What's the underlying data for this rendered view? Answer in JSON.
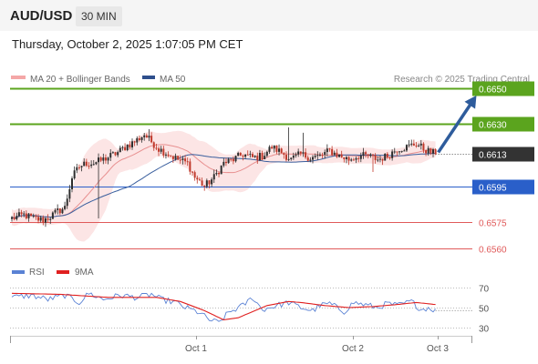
{
  "header": {
    "pair": "AUD/USD",
    "timeframe": "30 MIN",
    "timestamp": "Thursday, October 2, 2025 1:07:05 PM CET"
  },
  "legend": {
    "ma20": "MA 20 + Bollinger Bands",
    "ma50": "MA 50",
    "research": "Research © 2025 Trading Central",
    "rsi": "RSI",
    "ma9": "9MA"
  },
  "colors": {
    "resistance": "#5ba41e",
    "current": "#333333",
    "pivot": "#2a5fc9",
    "support": "#e05a5a",
    "ma20": "#e89090",
    "band_fill": "#fbdcdc",
    "ma50": "#3a5f9e",
    "candle_up": "#2d2d2d",
    "candle_down": "#c0392b",
    "arrow": "#2e5c9c",
    "rsi": "#5a82d4",
    "rsi_ma": "#e02020"
  },
  "chart_data": [
    {
      "type": "candlestick",
      "y_range": [
        0.65515,
        0.66535
      ],
      "x_labels": [
        "Oct 1",
        "Oct 2",
        "Oct 3"
      ],
      "levels": [
        {
          "label": "0.6650",
          "value": 0.665,
          "kind": "resistance"
        },
        {
          "label": "0.6630",
          "value": 0.663,
          "kind": "resistance"
        },
        {
          "label": "0.6613",
          "value": 0.6613,
          "kind": "current"
        },
        {
          "label": "0.6595",
          "value": 0.6595,
          "kind": "pivot"
        },
        {
          "label": "0.6575",
          "value": 0.6575,
          "kind": "support"
        },
        {
          "label": "0.6560",
          "value": 0.656,
          "kind": "support"
        }
      ],
      "anchors": [
        [
          0,
          0.6577
        ],
        [
          5,
          0.6579
        ],
        [
          9,
          0.6577
        ],
        [
          13,
          0.6576
        ],
        [
          16,
          0.6578
        ],
        [
          19,
          0.6581
        ],
        [
          22,
          0.6583
        ],
        [
          25,
          0.66
        ],
        [
          28,
          0.6606
        ],
        [
          31,
          0.6608
        ],
        [
          34,
          0.6608
        ],
        [
          38,
          0.661
        ],
        [
          41,
          0.6612
        ],
        [
          44,
          0.6614
        ],
        [
          48,
          0.6618
        ],
        [
          51,
          0.662
        ],
        [
          55,
          0.6624
        ],
        [
          58,
          0.662
        ],
        [
          61,
          0.6616
        ],
        [
          65,
          0.6613
        ],
        [
          69,
          0.661
        ],
        [
          73,
          0.6608
        ],
        [
          76,
          0.66
        ],
        [
          80,
          0.6595
        ],
        [
          84,
          0.66
        ],
        [
          88,
          0.6608
        ],
        [
          92,
          0.661
        ],
        [
          96,
          0.6613
        ],
        [
          100,
          0.6611
        ],
        [
          104,
          0.6612
        ],
        [
          108,
          0.6617
        ],
        [
          112,
          0.6614
        ],
        [
          116,
          0.661
        ],
        [
          120,
          0.6613
        ],
        [
          124,
          0.6611
        ],
        [
          128,
          0.6612
        ],
        [
          132,
          0.6615
        ],
        [
          136,
          0.6612
        ],
        [
          140,
          0.661
        ],
        [
          144,
          0.6612
        ],
        [
          148,
          0.6612
        ],
        [
          152,
          0.661
        ],
        [
          156,
          0.6612
        ],
        [
          160,
          0.6616
        ],
        [
          164,
          0.6617
        ],
        [
          168,
          0.6619
        ],
        [
          171,
          0.6616
        ],
        [
          174,
          0.6614
        ],
        [
          176,
          0.6613
        ]
      ],
      "arrow_from": {
        "bar": 176,
        "value": 0.6613
      },
      "arrow_to": {
        "bar": 193,
        "value": 0.665
      }
    },
    {
      "type": "line",
      "series": [
        "RSI",
        "9MA"
      ],
      "y_range": [
        25,
        75
      ],
      "ticks": [
        "70",
        "50",
        "30"
      ],
      "rsi_anchors": [
        [
          0,
          60
        ],
        [
          8,
          62
        ],
        [
          15,
          58
        ],
        [
          22,
          62
        ],
        [
          28,
          55
        ],
        [
          32,
          64
        ],
        [
          38,
          58
        ],
        [
          45,
          62
        ],
        [
          52,
          60
        ],
        [
          58,
          63
        ],
        [
          62,
          58
        ],
        [
          68,
          55
        ],
        [
          72,
          50
        ],
        [
          78,
          45
        ],
        [
          82,
          38
        ],
        [
          86,
          35
        ],
        [
          90,
          45
        ],
        [
          96,
          52
        ],
        [
          100,
          60
        ],
        [
          104,
          48
        ],
        [
          110,
          52
        ],
        [
          115,
          55
        ],
        [
          120,
          50
        ],
        [
          125,
          47
        ],
        [
          128,
          52
        ],
        [
          132,
          54
        ],
        [
          138,
          46
        ],
        [
          142,
          55
        ],
        [
          148,
          52
        ],
        [
          152,
          50
        ],
        [
          156,
          54
        ],
        [
          160,
          52
        ],
        [
          166,
          56
        ],
        [
          170,
          48
        ],
        [
          173,
          50
        ],
        [
          176,
          47
        ]
      ],
      "ma_anchors": [
        [
          0,
          64
        ],
        [
          20,
          63
        ],
        [
          40,
          60
        ],
        [
          60,
          60
        ],
        [
          70,
          56
        ],
        [
          80,
          47
        ],
        [
          88,
          38
        ],
        [
          94,
          40
        ],
        [
          100,
          46
        ],
        [
          106,
          52
        ],
        [
          115,
          56
        ],
        [
          120,
          55
        ],
        [
          130,
          52
        ],
        [
          140,
          50
        ],
        [
          150,
          51
        ],
        [
          160,
          53
        ],
        [
          168,
          55
        ],
        [
          176,
          53
        ]
      ]
    }
  ]
}
